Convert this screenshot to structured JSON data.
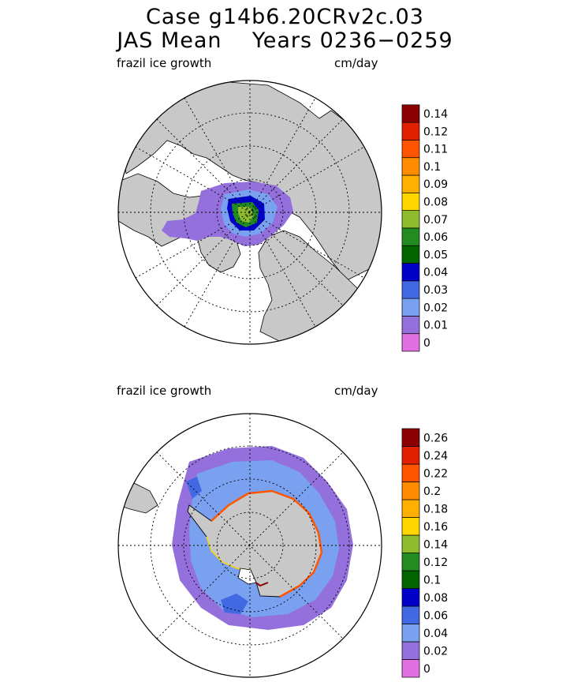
{
  "header": {
    "line1": "Case g14b6.20CRv2c.03",
    "line2": "JAS Mean    Years 0236−0259"
  },
  "colors": {
    "land": "#c8c8c8",
    "ocean": "#ffffff",
    "scale": [
      "#e070e0",
      "#9370db",
      "#7aa0f0",
      "#4169e1",
      "#0000c8",
      "#006400",
      "#228b22",
      "#8fbc2f",
      "#ffd700",
      "#ffb000",
      "#ff8c00",
      "#ff5500",
      "#e02000",
      "#8b0000"
    ]
  },
  "panels": [
    {
      "id": "north",
      "field_label": "frazil ice growth",
      "units_label": "cm/day",
      "hemisphere": "Northern",
      "colorbar_labels": [
        "0",
        "0.01",
        "0.02",
        "0.03",
        "0.04",
        "0.05",
        "0.06",
        "0.07",
        "0.08",
        "0.09",
        "0.1",
        "0.11",
        "0.12",
        "0.14"
      ]
    },
    {
      "id": "south",
      "field_label": "frazil ice growth",
      "units_label": "cm/day",
      "hemisphere": "Southern",
      "colorbar_labels": [
        "0",
        "0.02",
        "0.04",
        "0.06",
        "0.08",
        "0.1",
        "0.12",
        "0.14",
        "0.16",
        "0.18",
        "0.2",
        "0.22",
        "0.24",
        "0.26"
      ]
    }
  ]
}
